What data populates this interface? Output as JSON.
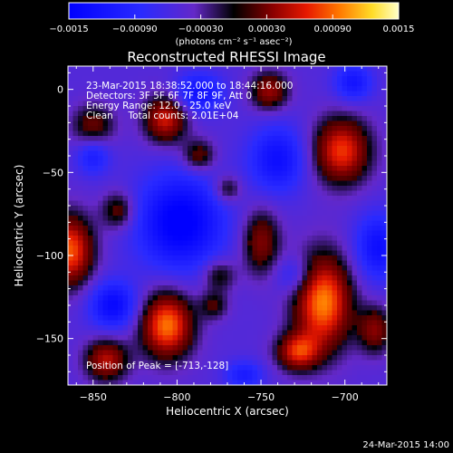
{
  "chart_data": {
    "type": "heatmap",
    "title": "Reconstructed RHESSI Image",
    "xlabel": "Heliocentric X (arcsec)",
    "ylabel": "Heliocentric Y (arcsec)",
    "xlim": [
      -865,
      -675
    ],
    "ylim": [
      -178,
      14
    ],
    "xticks": [
      {
        "value": -850,
        "label": "−850"
      },
      {
        "value": -800,
        "label": "−800"
      },
      {
        "value": -750,
        "label": "−750"
      },
      {
        "value": -700,
        "label": "−700"
      }
    ],
    "yticks": [
      {
        "value": 0,
        "label": "0"
      },
      {
        "value": -50,
        "label": "−50"
      },
      {
        "value": -100,
        "label": "−100"
      },
      {
        "value": -150,
        "label": "−150"
      }
    ],
    "colorbar": {
      "min": -0.0015,
      "max": 0.0015,
      "unit_label": "(photons cm⁻² s⁻¹ asec⁻²)",
      "ticks": [
        {
          "value": -0.0015,
          "label": "−0.0015"
        },
        {
          "value": -0.0009,
          "label": "−0.00090"
        },
        {
          "value": -0.0003,
          "label": "−0.00030"
        },
        {
          "value": 0.0003,
          "label": "0.00030"
        },
        {
          "value": 0.0009,
          "label": "0.00090"
        },
        {
          "value": 0.0015,
          "label": "0.0015"
        }
      ]
    },
    "info_lines": [
      "23-Mar-2015 18:38:52.000 to 18:44:16.000",
      "Detectors: 3F 5F 6F 7F 8F 9F, Att 0",
      "Energy Range: 12.0 - 25.0 keV",
      "Clean     Total counts: 2.01E+04"
    ],
    "peak_text": "Position of Peak = [-713,-128]",
    "peak": {
      "x": -713,
      "y": -128
    },
    "blobs": [
      {
        "x": -807,
        "y": -18,
        "sx": 9,
        "sy": 10,
        "a": 0.0011
      },
      {
        "x": -745,
        "y": -1,
        "sx": 8,
        "sy": 8,
        "a": 0.0009
      },
      {
        "x": -702,
        "y": -37,
        "sx": 12,
        "sy": 14,
        "a": 0.00125
      },
      {
        "x": -787,
        "y": -40,
        "sx": 7,
        "sy": 7,
        "a": 0.0007
      },
      {
        "x": -864,
        "y": -97,
        "sx": 10,
        "sy": 15,
        "a": 0.00135
      },
      {
        "x": -806,
        "y": -142,
        "sx": 11,
        "sy": 14,
        "a": 0.00145
      },
      {
        "x": -713,
        "y": -128,
        "sx": 12,
        "sy": 20,
        "a": 0.0015
      },
      {
        "x": -728,
        "y": -158,
        "sx": 9,
        "sy": 8,
        "a": 0.0011
      },
      {
        "x": -842,
        "y": -163,
        "sx": 9,
        "sy": 9,
        "a": 0.001
      },
      {
        "x": -750,
        "y": -92,
        "sx": 8,
        "sy": 14,
        "a": 0.0008
      },
      {
        "x": -775,
        "y": -112,
        "sx": 7,
        "sy": 7,
        "a": 0.0006
      },
      {
        "x": -682,
        "y": -145,
        "sx": 7,
        "sy": 10,
        "a": 0.0008
      },
      {
        "x": -850,
        "y": -22,
        "sx": 9,
        "sy": 9,
        "a": 0.0007
      },
      {
        "x": -835,
        "y": -73,
        "sx": 7,
        "sy": 8,
        "a": 0.0007
      },
      {
        "x": -770,
        "y": -60,
        "sx": 6,
        "sy": 6,
        "a": 0.0006
      },
      {
        "x": -778,
        "y": -130,
        "sx": 6,
        "sy": 6,
        "a": 0.00055
      },
      {
        "x": -798,
        "y": -80,
        "sx": 18,
        "sy": 20,
        "a": -0.0011
      },
      {
        "x": -787,
        "y": -2,
        "sx": 10,
        "sy": 8,
        "a": -0.0008
      },
      {
        "x": -740,
        "y": -42,
        "sx": 12,
        "sy": 14,
        "a": -0.0008
      },
      {
        "x": -680,
        "y": -95,
        "sx": 10,
        "sy": 14,
        "a": -0.0008
      },
      {
        "x": -838,
        "y": -130,
        "sx": 10,
        "sy": 10,
        "a": -0.0009
      },
      {
        "x": -850,
        "y": -40,
        "sx": 7,
        "sy": 8,
        "a": -0.0006
      },
      {
        "x": -730,
        "y": -112,
        "sx": 8,
        "sy": 8,
        "a": -0.0005
      },
      {
        "x": -695,
        "y": 4,
        "sx": 8,
        "sy": 8,
        "a": -0.0007
      },
      {
        "x": -760,
        "y": -172,
        "sx": 8,
        "sy": 6,
        "a": -0.0006
      }
    ],
    "grid": false
  },
  "timestamp": "24-Mar-2015 14:00"
}
